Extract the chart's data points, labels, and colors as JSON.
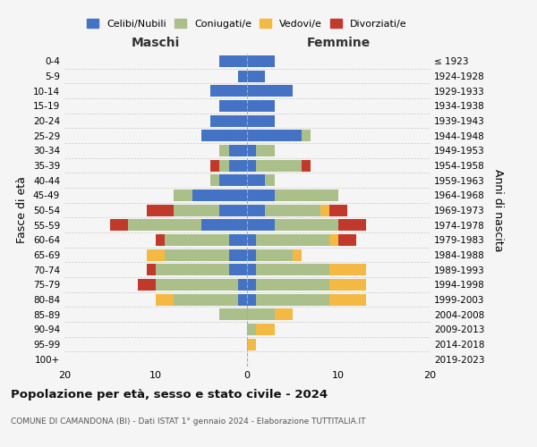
{
  "age_groups": [
    "0-4",
    "5-9",
    "10-14",
    "15-19",
    "20-24",
    "25-29",
    "30-34",
    "35-39",
    "40-44",
    "45-49",
    "50-54",
    "55-59",
    "60-64",
    "65-69",
    "70-74",
    "75-79",
    "80-84",
    "85-89",
    "90-94",
    "95-99",
    "100+"
  ],
  "birth_years": [
    "2019-2023",
    "2014-2018",
    "2009-2013",
    "2004-2008",
    "1999-2003",
    "1994-1998",
    "1989-1993",
    "1984-1988",
    "1979-1983",
    "1974-1978",
    "1969-1973",
    "1964-1968",
    "1959-1963",
    "1954-1958",
    "1949-1953",
    "1944-1948",
    "1939-1943",
    "1934-1938",
    "1929-1933",
    "1924-1928",
    "≤ 1923"
  ],
  "colors": {
    "celibi": "#4472C4",
    "coniugati": "#AABF8A",
    "vedovi": "#F4B942",
    "divorziati": "#C0392B"
  },
  "maschi": {
    "celibi": [
      3,
      1,
      4,
      3,
      4,
      5,
      2,
      2,
      3,
      6,
      3,
      5,
      2,
      2,
      2,
      1,
      1,
      0,
      0,
      0,
      0
    ],
    "coniugati": [
      0,
      0,
      0,
      0,
      0,
      0,
      1,
      1,
      1,
      2,
      5,
      8,
      7,
      7,
      8,
      9,
      7,
      3,
      0,
      0,
      0
    ],
    "vedovi": [
      0,
      0,
      0,
      0,
      0,
      0,
      0,
      0,
      0,
      0,
      0,
      0,
      0,
      2,
      0,
      0,
      2,
      0,
      0,
      0,
      0
    ],
    "divorziati": [
      0,
      0,
      0,
      0,
      0,
      0,
      0,
      1,
      0,
      0,
      3,
      2,
      1,
      0,
      1,
      2,
      0,
      0,
      0,
      0,
      0
    ]
  },
  "femmine": {
    "celibi": [
      3,
      2,
      5,
      3,
      3,
      6,
      1,
      1,
      2,
      3,
      2,
      3,
      1,
      1,
      1,
      1,
      1,
      0,
      0,
      0,
      0
    ],
    "coniugati": [
      0,
      0,
      0,
      0,
      0,
      1,
      2,
      5,
      1,
      7,
      6,
      7,
      8,
      4,
      8,
      8,
      8,
      3,
      1,
      0,
      0
    ],
    "vedovi": [
      0,
      0,
      0,
      0,
      0,
      0,
      0,
      0,
      0,
      0,
      1,
      0,
      1,
      1,
      4,
      4,
      4,
      2,
      2,
      1,
      0
    ],
    "divorziati": [
      0,
      0,
      0,
      0,
      0,
      0,
      0,
      1,
      0,
      0,
      2,
      3,
      2,
      0,
      0,
      0,
      0,
      0,
      0,
      0,
      0
    ]
  },
  "xlim": 20,
  "title": "Popolazione per età, sesso e stato civile - 2024",
  "subtitle": "COMUNE DI CAMANDONA (BI) - Dati ISTAT 1° gennaio 2024 - Elaborazione TUTTITALIA.IT",
  "ylabel_left": "Fasce di età",
  "ylabel_right": "Anni di nascita",
  "xlabel_left": "Maschi",
  "xlabel_right": "Femmine",
  "bg_color": "#f5f5f5",
  "grid_color": "#cccccc"
}
